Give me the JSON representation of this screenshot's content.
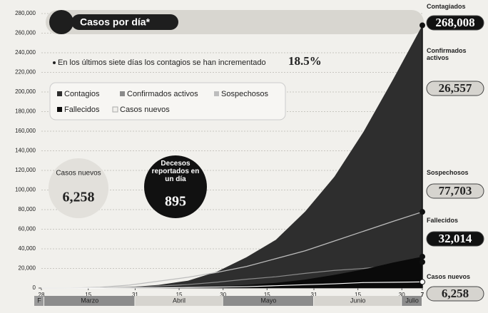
{
  "chart_data": {
    "type": "area",
    "title": "Casos por día*",
    "annotation": {
      "text": "En los últimos siete días los contagios se han incrementado",
      "value": 18.5,
      "label": "18.5%"
    },
    "bubbles": [
      {
        "text": "Casos nuevos",
        "value": 6258,
        "label": "6,258"
      },
      {
        "text": "Decesos reportados en un día",
        "value": 895,
        "label": "895"
      }
    ],
    "x": [
      0,
      10,
      20,
      30,
      40,
      50,
      60,
      70,
      80,
      90,
      100,
      110,
      120,
      130
    ],
    "xlim": [
      0,
      130
    ],
    "xticks": [
      {
        "value": 0,
        "label": "28"
      },
      {
        "value": 16,
        "label": "15"
      },
      {
        "value": 32,
        "label": "31"
      },
      {
        "value": 47,
        "label": "15"
      },
      {
        "value": 62,
        "label": "30"
      },
      {
        "value": 77,
        "label": "15"
      },
      {
        "value": 93,
        "label": "31"
      },
      {
        "value": 108,
        "label": "15"
      },
      {
        "value": 123,
        "label": "30"
      },
      {
        "value": 130,
        "label": "7"
      }
    ],
    "months": [
      "F",
      "Marzo",
      "Abril",
      "Mayo",
      "Junio",
      "Julio"
    ],
    "ylim": [
      0,
      280000
    ],
    "yticks": [
      0,
      {
        "value": 20000,
        "label": "20,000"
      },
      {
        "value": 40000,
        "label": "40,000"
      },
      {
        "value": 60000,
        "label": "60,000"
      },
      {
        "value": 80000,
        "label": "80,000"
      },
      {
        "value": 100000,
        "label": "100,000"
      },
      {
        "value": 120000,
        "label": "120,000"
      },
      {
        "value": 140000,
        "label": "140,000"
      },
      {
        "value": 160000,
        "label": "160,000"
      },
      {
        "value": 180000,
        "label": "180,000"
      },
      {
        "value": 200000,
        "label": "200,000"
      },
      {
        "value": 220000,
        "label": "220,000"
      },
      {
        "value": 240000,
        "label": "240,000"
      },
      {
        "value": 260000,
        "label": "260,000"
      },
      {
        "value": 280000,
        "label": "280,000"
      }
    ],
    "grid": true,
    "series": [
      {
        "name": "Contagios",
        "end_name": "Contagiados",
        "color": "#2e2e2e",
        "fill": true,
        "values": [
          1,
          7,
          118,
          993,
          3200,
          7500,
          16800,
          31500,
          49200,
          78000,
          113600,
          159800,
          212800,
          268008
        ],
        "value_labels": [
          null,
          null,
          null,
          null,
          null,
          null,
          null,
          null,
          null,
          null,
          null,
          null,
          null,
          "268,008"
        ]
      },
      {
        "name": "Confirmados activos",
        "end_name": "Confirmados activos",
        "color": "#8a8a8a",
        "fill": false,
        "values": [
          1,
          7,
          110,
          800,
          2000,
          3600,
          6000,
          9000,
          11500,
          15000,
          18000,
          20000,
          23000,
          26557
        ],
        "value_labels": [
          null,
          null,
          null,
          null,
          null,
          null,
          null,
          null,
          null,
          null,
          null,
          null,
          null,
          "26,557"
        ]
      },
      {
        "name": "Sospechosos",
        "end_name": "Sospechosos",
        "color": "#bdbdbd",
        "fill": false,
        "values": [
          0,
          50,
          800,
          3000,
          7000,
          11000,
          16000,
          22000,
          30000,
          38000,
          48000,
          58000,
          68000,
          77703
        ],
        "value_labels": [
          null,
          null,
          null,
          null,
          null,
          null,
          null,
          null,
          null,
          null,
          null,
          null,
          null,
          "77,703"
        ]
      },
      {
        "name": "Fallecidos",
        "end_name": "Fallecidos",
        "color": "#0a0a0a",
        "fill": true,
        "values": [
          0,
          0,
          1,
          20,
          190,
          650,
          1600,
          3200,
          5300,
          8600,
          13500,
          19000,
          26000,
          32014
        ],
        "value_labels": [
          null,
          null,
          null,
          null,
          null,
          null,
          null,
          null,
          null,
          null,
          null,
          null,
          null,
          "32,014"
        ]
      },
      {
        "name": "Casos nuevos",
        "end_name": "Casos nuevos",
        "color": "#ffffff",
        "fill": false,
        "values": [
          0,
          2,
          30,
          150,
          300,
          550,
          1000,
          1400,
          2400,
          3400,
          4300,
          5600,
          5900,
          6258
        ],
        "value_labels": [
          null,
          null,
          null,
          null,
          null,
          null,
          null,
          null,
          null,
          null,
          null,
          null,
          null,
          "6,258"
        ]
      }
    ]
  }
}
